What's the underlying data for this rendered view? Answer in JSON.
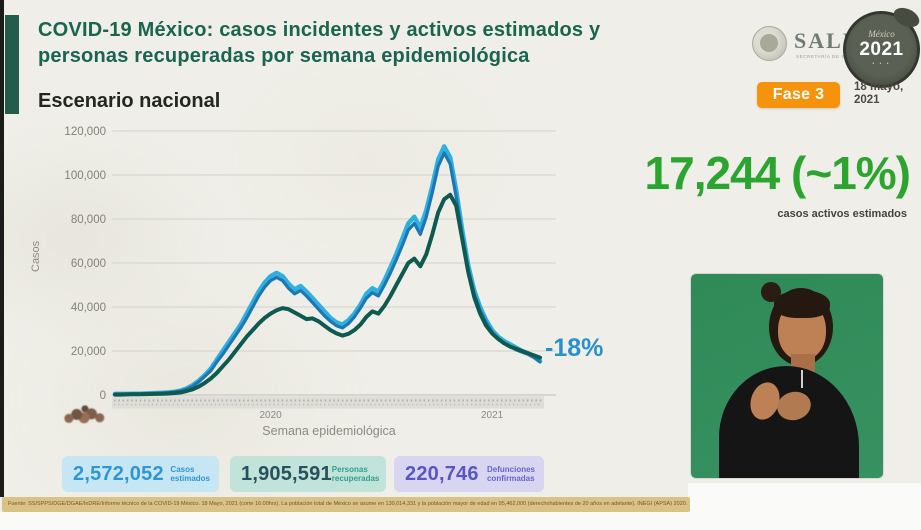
{
  "header": {
    "title_line1": "COVID-19 México: casos incidentes y activos estimados y",
    "title_line2": "personas recuperadas por semana epidemiológica",
    "subtitle": "Escenario nacional",
    "salud_logo_text": "SALUD",
    "salud_logo_subtext": "SECRETARÍA DE SALUD",
    "badge_2021_top": "México",
    "badge_2021_year": "2021",
    "phase_badge": "Fase 3",
    "date_line1": "18 mayo,",
    "date_line2": "2021"
  },
  "highlight": {
    "big_number": "17,244 (~1%)",
    "caption": "casos activos estimados",
    "color": "#2BA52F"
  },
  "chart_data": {
    "type": "line",
    "xlabel": "Semana epidemiológica",
    "ylabel": "Casos",
    "ylim": [
      0,
      120000
    ],
    "grid": true,
    "legend_position": "none",
    "weeks_total": 72,
    "x_range_note": "semanas epidemiológicas 2020-s01 a 2021-s19",
    "y_ticks": [
      0,
      20000,
      40000,
      60000,
      80000,
      100000,
      120000
    ],
    "y_tick_labels": [
      "0",
      "20,000",
      "40,000",
      "60,000",
      "80,000",
      "100,000",
      "120,000"
    ],
    "x_year_labels": [
      {
        "label": "2020",
        "week_index": 26
      },
      {
        "label": "2021",
        "week_index": 63
      }
    ],
    "annotation": {
      "text": "-18%",
      "color": "#2791CC"
    },
    "series": [
      {
        "name": "casos estimados",
        "color": "#2FB0DE",
        "stroke_width": 4.5,
        "values": [
          500,
          500,
          500,
          600,
          600,
          700,
          800,
          900,
          1000,
          1200,
          1500,
          2000,
          3000,
          4500,
          6500,
          9000,
          12000,
          16000,
          20000,
          24000,
          28000,
          32000,
          37000,
          42000,
          47000,
          51000,
          54000,
          55500,
          54000,
          50500,
          48000,
          49500,
          47000,
          44000,
          41000,
          38000,
          35000,
          33000,
          32000,
          34000,
          37000,
          41000,
          46000,
          48500,
          47000,
          52000,
          58000,
          64000,
          71000,
          78000,
          81000,
          76000,
          84000,
          95000,
          107000,
          113000,
          108000,
          93000,
          75000,
          59000,
          47500,
          40000,
          34000,
          29500,
          26500,
          24500,
          23000,
          21500,
          20000,
          19000,
          17500,
          15500
        ]
      },
      {
        "name": "casos incidentes",
        "color": "#1C77B5",
        "stroke_width": 3.2,
        "values": [
          400,
          400,
          450,
          500,
          550,
          600,
          700,
          800,
          900,
          1100,
          1400,
          1800,
          2700,
          4000,
          6000,
          8500,
          11000,
          15000,
          18500,
          22500,
          26500,
          30500,
          35000,
          40000,
          45000,
          49000,
          52000,
          53500,
          52000,
          48500,
          46000,
          47500,
          45000,
          42000,
          39000,
          36000,
          33500,
          31500,
          30500,
          32500,
          35500,
          39500,
          44000,
          46500,
          45000,
          50000,
          55500,
          61500,
          68000,
          75000,
          78000,
          73000,
          81000,
          92000,
          104000,
          110000,
          105000,
          90000,
          72500,
          57000,
          46000,
          38500,
          33000,
          28500,
          25500,
          23500,
          22000,
          20500,
          19500,
          18500,
          17000,
          15000
        ]
      },
      {
        "name": "personas recuperadas",
        "color": "#0F5A50",
        "stroke_width": 4,
        "values": [
          200,
          200,
          250,
          300,
          350,
          400,
          450,
          500,
          600,
          700,
          900,
          1200,
          1800,
          2600,
          3800,
          5500,
          7500,
          10000,
          13000,
          16000,
          19500,
          23000,
          26500,
          29500,
          32500,
          35000,
          37000,
          38500,
          39500,
          39000,
          37500,
          36000,
          34500,
          34800,
          33500,
          31500,
          29500,
          28000,
          27000,
          27800,
          29500,
          32000,
          35500,
          38000,
          37000,
          40500,
          45000,
          50000,
          55000,
          60000,
          62000,
          58500,
          64000,
          73000,
          83000,
          89000,
          91000,
          86000,
          71000,
          56000,
          44500,
          37000,
          31500,
          28000,
          25500,
          23500,
          22000,
          21000,
          20000,
          19000,
          18000,
          17000
        ]
      }
    ]
  },
  "stats": [
    {
      "value": "2,572,052",
      "label_line1": "Casos",
      "label_line2": "estimados",
      "bg": "#C7E6F4",
      "value_color": "#2E96D3",
      "label_color": "#2E96D3"
    },
    {
      "value": "1,905,591",
      "label_line1": "Personas",
      "label_line2": "recuperadas",
      "bg": "#C1E3D9",
      "value_color": "#27515C",
      "label_color": "#30A08C"
    },
    {
      "value": "220,746",
      "label_line1": "Defunciones",
      "label_line2": "confirmadas",
      "bg": "#D7D5EF",
      "value_color": "#5A55C5",
      "label_color": "#6A64CE"
    }
  ],
  "source_note": "Fuente: SS/SPPS/DGE/DGAE/InDRE/Informe técnico de la COVID-19 México. 18 Mayo, 2021 (corte 16:00hrs). La población total de México se asume en 130,014,331 y la población mayor de edad en 95,462,000 (derechohabientes de 20 años en adelante). INEGI (APSA) 2020.",
  "interpreter_alt": "Intérprete de lengua de señas mexicana"
}
